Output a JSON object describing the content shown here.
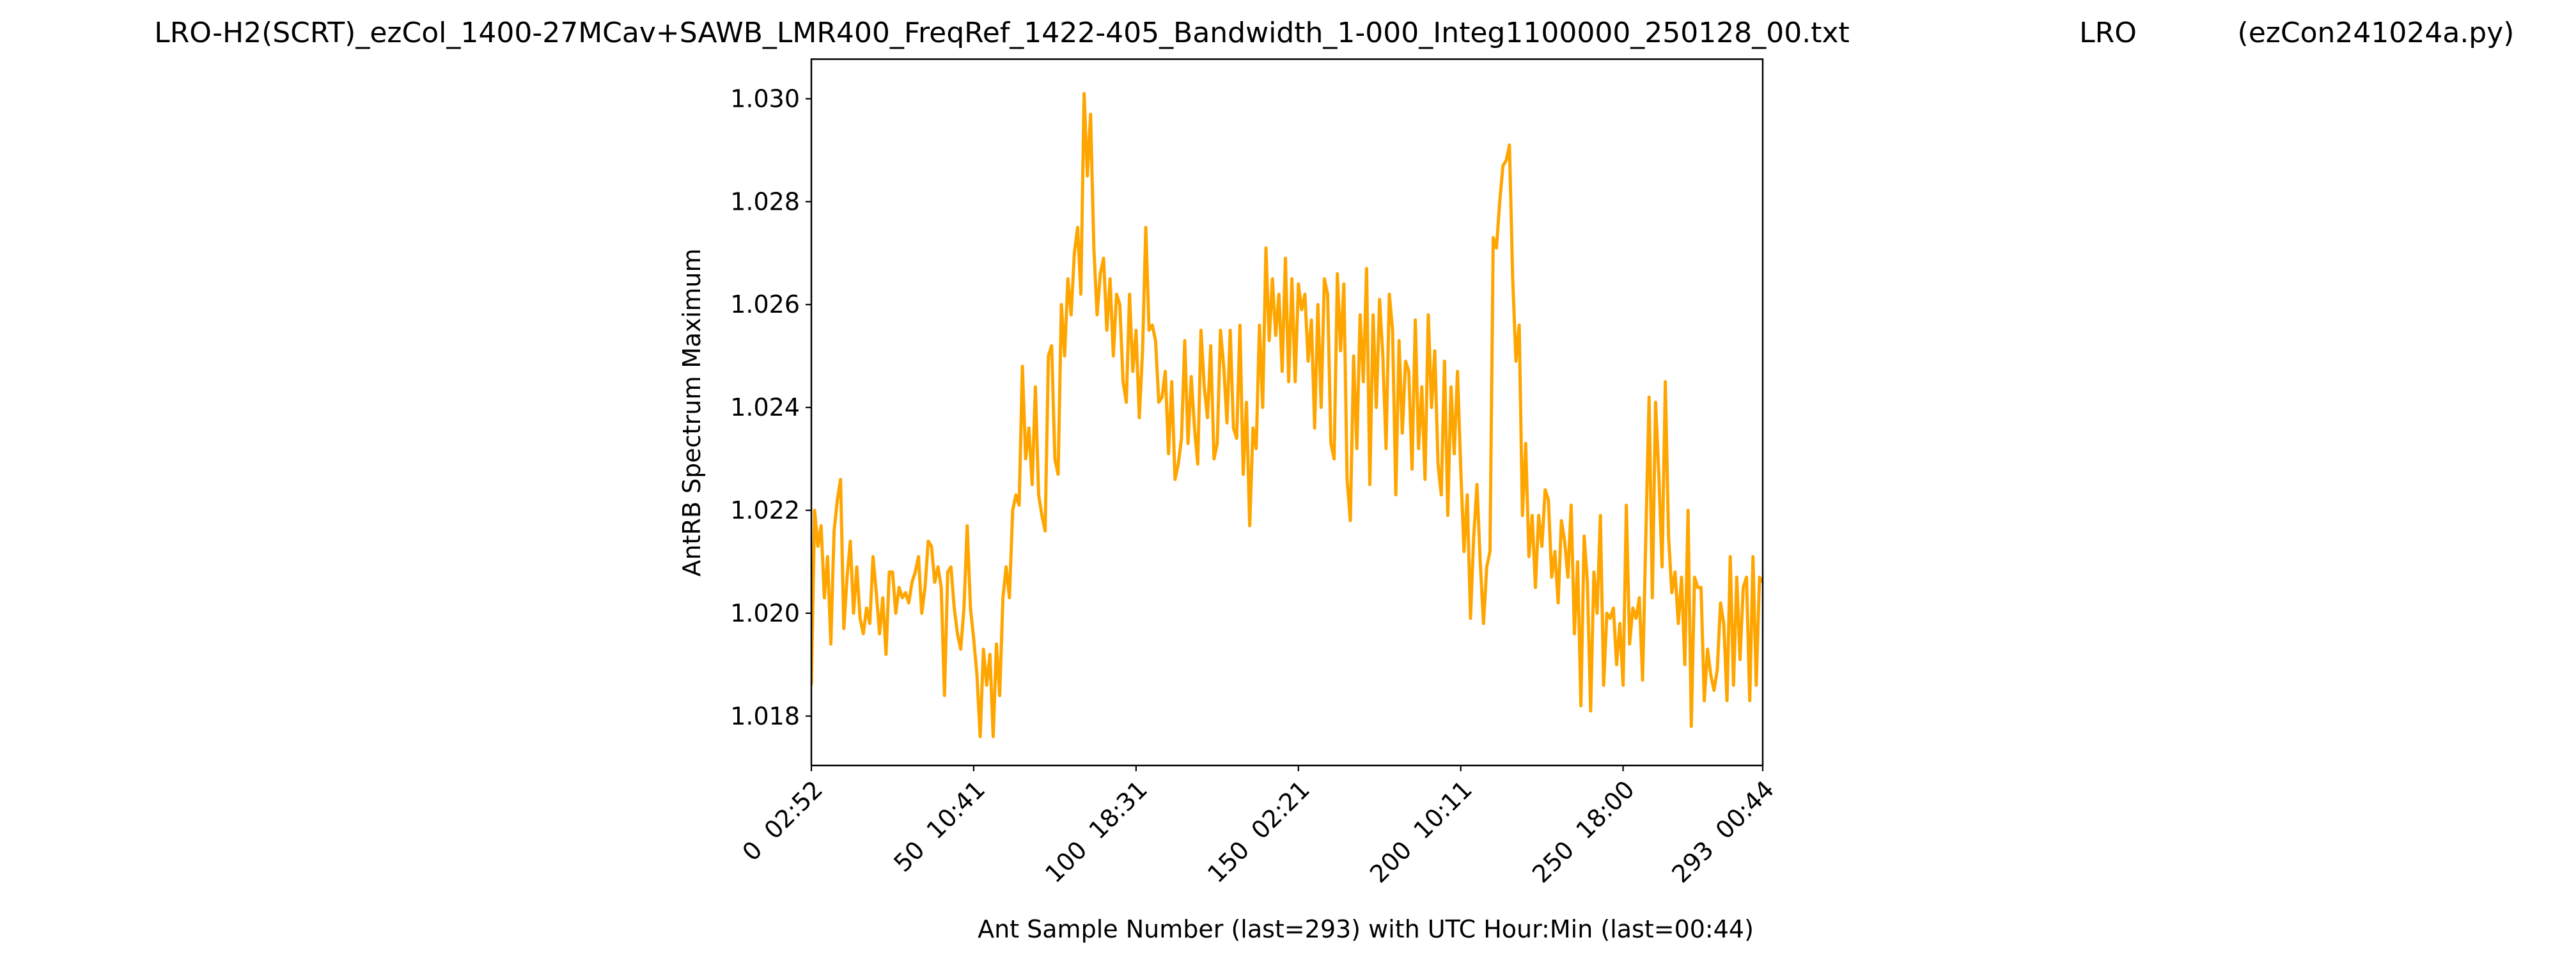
{
  "chart_data": {
    "type": "line",
    "title": [
      "LRO-H2(SCRT)_ezCol_1400-27MCav+SAWB_LMR400_FreqRef_1422-405_Bandwidth_1-000_Integ1100000_250128_00.txt",
      "LRO",
      "(ezCon241024a.py)"
    ],
    "xlabel": "Ant Sample Number (last=293) with UTC Hour:Min (last=00:44)",
    "ylabel": "AntRB Spectrum Maximum",
    "xlim": [
      0,
      293
    ],
    "xticks": [
      {
        "value": 0,
        "label": "0  02:52"
      },
      {
        "value": 50,
        "label": "50  10:41"
      },
      {
        "value": 100,
        "label": "100  18:31"
      },
      {
        "value": 150,
        "label": "150  02:21"
      },
      {
        "value": 200,
        "label": "200  10:11"
      },
      {
        "value": 250,
        "label": "250  18:00"
      },
      {
        "value": 293,
        "label": "293  00:44"
      }
    ],
    "ylim": [
      1.01704,
      1.03077
    ],
    "yticks": [
      1.018,
      {
        "value": 1.02,
        "label": "1.020"
      },
      1.022,
      1.024,
      1.026,
      1.028,
      {
        "value": 1.03,
        "label": "1.030"
      }
    ],
    "grid": false,
    "series": [
      {
        "color": "#ffa500",
        "x": [
          0,
          1,
          2,
          3,
          4,
          5,
          6,
          7,
          8,
          9,
          10,
          11,
          12,
          13,
          14,
          15,
          16,
          17,
          18,
          19,
          20,
          21,
          22,
          23,
          24,
          25,
          26,
          27,
          28,
          29,
          30,
          31,
          32,
          33,
          34,
          35,
          36,
          37,
          38,
          39,
          40,
          41,
          42,
          43,
          44,
          45,
          46,
          47,
          48,
          49,
          50,
          51,
          52,
          53,
          54,
          55,
          56,
          57,
          58,
          59,
          60,
          61,
          62,
          63,
          64,
          65,
          66,
          67,
          68,
          69,
          70,
          71,
          72,
          73,
          74,
          75,
          76,
          77,
          78,
          79,
          80,
          81,
          82,
          83,
          84,
          85,
          86,
          87,
          88,
          89,
          90,
          91,
          92,
          93,
          94,
          95,
          96,
          97,
          98,
          99,
          100,
          101,
          102,
          103,
          104,
          105,
          106,
          107,
          108,
          109,
          110,
          111,
          112,
          113,
          114,
          115,
          116,
          117,
          118,
          119,
          120,
          121,
          122,
          123,
          124,
          125,
          126,
          127,
          128,
          129,
          130,
          131,
          132,
          133,
          134,
          135,
          136,
          137,
          138,
          139,
          140,
          141,
          142,
          143,
          144,
          145,
          146,
          147,
          148,
          149,
          150,
          151,
          152,
          153,
          154,
          155,
          156,
          157,
          158,
          159,
          160,
          161,
          162,
          163,
          164,
          165,
          166,
          167,
          168,
          169,
          170,
          171,
          172,
          173,
          174,
          175,
          176,
          177,
          178,
          179,
          180,
          181,
          182,
          183,
          184,
          185,
          186,
          187,
          188,
          189,
          190,
          191,
          192,
          193,
          194,
          195,
          196,
          197,
          198,
          199,
          200,
          201,
          202,
          203,
          204,
          205,
          206,
          207,
          208,
          209,
          210,
          211,
          212,
          213,
          214,
          215,
          216,
          217,
          218,
          219,
          220,
          221,
          222,
          223,
          224,
          225,
          226,
          227,
          228,
          229,
          230,
          231,
          232,
          233,
          234,
          235,
          236,
          237,
          238,
          239,
          240,
          241,
          242,
          243,
          244,
          245,
          246,
          247,
          248,
          249,
          250,
          251,
          252,
          253,
          254,
          255,
          256,
          257,
          258,
          259,
          260,
          261,
          262,
          263,
          264,
          265,
          266,
          267,
          268,
          269,
          270,
          271,
          272,
          273,
          274,
          275,
          276,
          277,
          278,
          279,
          280,
          281,
          282,
          283,
          284,
          285,
          286,
          287,
          288,
          289,
          290,
          291,
          292,
          293
        ],
        "values": [
          1.0186,
          1.022,
          1.0213,
          1.0217,
          1.0203,
          1.0211,
          1.0194,
          1.0216,
          1.0222,
          1.0226,
          1.0197,
          1.0207,
          1.0214,
          1.02,
          1.0209,
          1.0199,
          1.0196,
          1.0201,
          1.0198,
          1.0211,
          1.0204,
          1.0196,
          1.0203,
          1.0192,
          1.0208,
          1.0208,
          1.02,
          1.0205,
          1.0203,
          1.0204,
          1.0202,
          1.0206,
          1.0208,
          1.0211,
          1.02,
          1.0205,
          1.0214,
          1.0213,
          1.0206,
          1.0209,
          1.0205,
          1.0184,
          1.0208,
          1.0209,
          1.0201,
          1.0196,
          1.0193,
          1.0201,
          1.0217,
          1.0201,
          1.0195,
          1.0188,
          1.0176,
          1.0193,
          1.0186,
          1.0192,
          1.0176,
          1.0194,
          1.0184,
          1.0203,
          1.0209,
          1.0203,
          1.022,
          1.0223,
          1.0221,
          1.0248,
          1.023,
          1.0236,
          1.0225,
          1.0244,
          1.0223,
          1.0219,
          1.0216,
          1.025,
          1.0252,
          1.023,
          1.0227,
          1.026,
          1.025,
          1.0265,
          1.0258,
          1.027,
          1.0275,
          1.0262,
          1.0301,
          1.0285,
          1.0297,
          1.0271,
          1.0258,
          1.0266,
          1.0269,
          1.0255,
          1.0265,
          1.025,
          1.0262,
          1.026,
          1.0245,
          1.0241,
          1.0262,
          1.0247,
          1.0255,
          1.0238,
          1.0251,
          1.0275,
          1.0255,
          1.0256,
          1.0253,
          1.0241,
          1.0242,
          1.0247,
          1.0231,
          1.0245,
          1.0226,
          1.0229,
          1.0234,
          1.0253,
          1.0233,
          1.0246,
          1.0236,
          1.0229,
          1.0255,
          1.0244,
          1.0238,
          1.0252,
          1.023,
          1.0233,
          1.0255,
          1.0248,
          1.0237,
          1.0255,
          1.0236,
          1.0234,
          1.0256,
          1.0227,
          1.0241,
          1.0217,
          1.0236,
          1.0232,
          1.0256,
          1.024,
          1.0271,
          1.0253,
          1.0265,
          1.0254,
          1.0262,
          1.0247,
          1.0269,
          1.0245,
          1.0265,
          1.0245,
          1.0264,
          1.0259,
          1.0262,
          1.0249,
          1.0257,
          1.0236,
          1.026,
          1.024,
          1.0265,
          1.0262,
          1.0233,
          1.023,
          1.0266,
          1.0251,
          1.0264,
          1.0226,
          1.0218,
          1.025,
          1.0232,
          1.0258,
          1.0245,
          1.0267,
          1.0225,
          1.0258,
          1.024,
          1.0261,
          1.025,
          1.0232,
          1.0262,
          1.0255,
          1.0223,
          1.0253,
          1.0235,
          1.0249,
          1.0247,
          1.0228,
          1.0257,
          1.0232,
          1.0244,
          1.0226,
          1.0258,
          1.024,
          1.0251,
          1.0229,
          1.0223,
          1.0249,
          1.0219,
          1.0244,
          1.0231,
          1.0247,
          1.0228,
          1.0212,
          1.0223,
          1.0199,
          1.0215,
          1.0225,
          1.021,
          1.0198,
          1.0209,
          1.0212,
          1.0273,
          1.0271,
          1.028,
          1.0287,
          1.0288,
          1.0291,
          1.0265,
          1.0249,
          1.0256,
          1.0219,
          1.0233,
          1.0211,
          1.0219,
          1.0205,
          1.0219,
          1.0213,
          1.0224,
          1.0222,
          1.0207,
          1.0212,
          1.0202,
          1.0218,
          1.0214,
          1.0207,
          1.0221,
          1.0196,
          1.021,
          1.0182,
          1.0215,
          1.0206,
          1.0181,
          1.0208,
          1.02,
          1.0219,
          1.0186,
          1.02,
          1.0199,
          1.0201,
          1.019,
          1.0198,
          1.0186,
          1.0221,
          1.0194,
          1.0201,
          1.0199,
          1.0203,
          1.0187,
          1.0215,
          1.0242,
          1.0203,
          1.0241,
          1.0227,
          1.0209,
          1.0245,
          1.0215,
          1.0204,
          1.0208,
          1.0198,
          1.0207,
          1.019,
          1.022,
          1.0178,
          1.0207,
          1.0205,
          1.0205,
          1.0183,
          1.0193,
          1.0188,
          1.0185,
          1.0189,
          1.0202,
          1.0198,
          1.0183,
          1.0211,
          1.0186,
          1.0207,
          1.0191,
          1.0205,
          1.0207,
          1.0183,
          1.0211,
          1.0186,
          1.0207,
          1.0206
        ]
      }
    ]
  }
}
